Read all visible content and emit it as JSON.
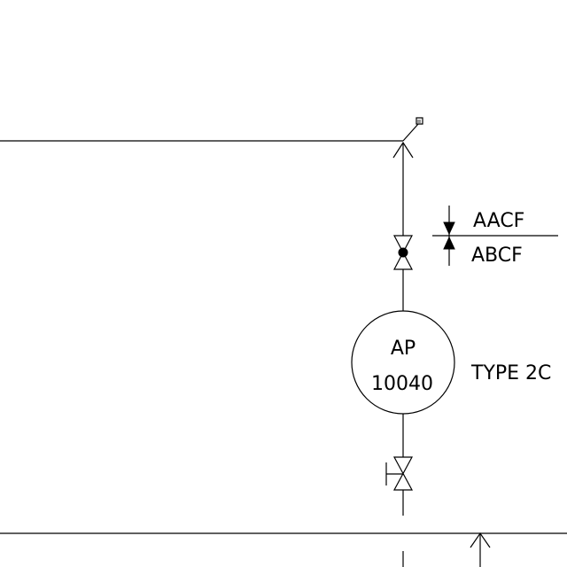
{
  "instrument": {
    "letters": "AP",
    "number": "10040",
    "type_note": "TYPE 2C"
  },
  "test_point_labels": {
    "upper": "AACF",
    "lower": "ABCF"
  },
  "colors": {
    "line": "#000000",
    "background": "#ffffff"
  }
}
